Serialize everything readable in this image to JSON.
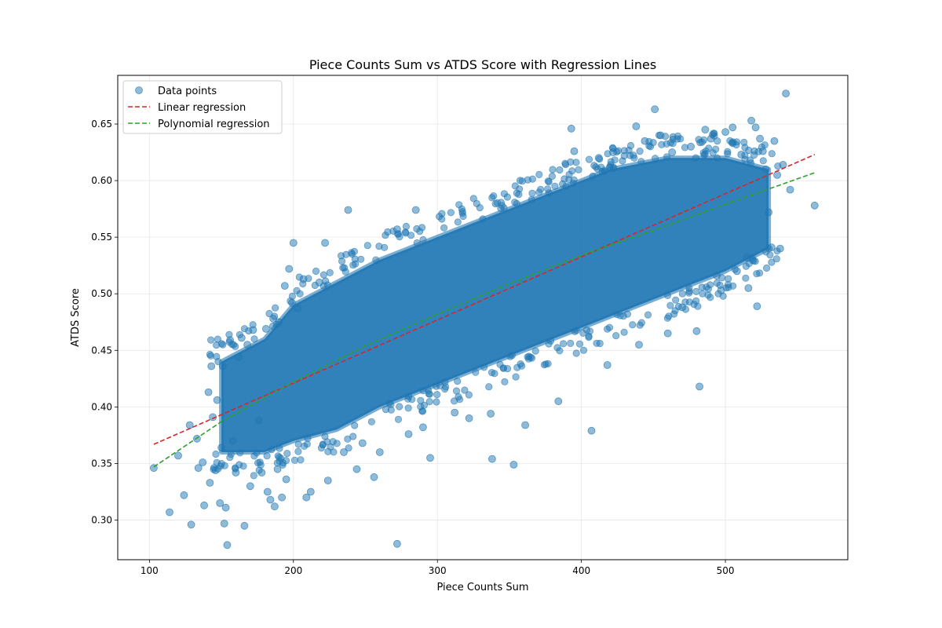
{
  "chart_data": {
    "type": "scatter",
    "title": "Piece Counts Sum vs ATDS Score with Regression Lines",
    "xlabel": "Piece Counts Sum",
    "ylabel": "ATDS Score",
    "xlim": [
      78,
      585
    ],
    "ylim": [
      0.265,
      0.693
    ],
    "xticks": [
      100,
      200,
      300,
      400,
      500
    ],
    "yticks": [
      0.3,
      0.35,
      0.4,
      0.45,
      0.5,
      0.55,
      0.6,
      0.65
    ],
    "grid": true,
    "legend_position": "top-left",
    "legend": [
      {
        "label": "Data points",
        "kind": "marker",
        "color": "#1f77b4"
      },
      {
        "label": "Linear regression",
        "kind": "dashed-line",
        "color": "#d62728"
      },
      {
        "label": "Polynomial regression",
        "kind": "dashed-line",
        "color": "#2ca02c"
      }
    ],
    "series": [
      {
        "name": "Data points",
        "kind": "scatter",
        "color": "#1f77b4",
        "dense_band": {
          "x": [
            150,
            180,
            200,
            230,
            260,
            300,
            340,
            380,
            420,
            460,
            500,
            530
          ],
          "y_low": [
            0.36,
            0.36,
            0.37,
            0.38,
            0.4,
            0.42,
            0.44,
            0.46,
            0.48,
            0.5,
            0.52,
            0.54
          ],
          "y_high": [
            0.44,
            0.46,
            0.49,
            0.51,
            0.53,
            0.55,
            0.57,
            0.59,
            0.61,
            0.62,
            0.62,
            0.61
          ]
        },
        "points": [
          [
            103,
            0.346
          ],
          [
            114,
            0.307
          ],
          [
            120,
            0.357
          ],
          [
            124,
            0.322
          ],
          [
            128,
            0.384
          ],
          [
            129,
            0.296
          ],
          [
            133,
            0.372
          ],
          [
            134,
            0.346
          ],
          [
            137,
            0.351
          ],
          [
            138,
            0.313
          ],
          [
            141,
            0.413
          ],
          [
            142,
            0.333
          ],
          [
            143,
            0.436
          ],
          [
            144,
            0.391
          ],
          [
            146,
            0.344
          ],
          [
            147,
            0.406
          ],
          [
            149,
            0.315
          ],
          [
            150,
            0.364
          ],
          [
            151,
            0.436
          ],
          [
            152,
            0.297
          ],
          [
            153,
            0.311
          ],
          [
            154,
            0.278
          ],
          [
            156,
            0.459
          ],
          [
            158,
            0.37
          ],
          [
            160,
            0.342
          ],
          [
            162,
            0.444
          ],
          [
            164,
            0.461
          ],
          [
            166,
            0.295
          ],
          [
            168,
            0.455
          ],
          [
            170,
            0.33
          ],
          [
            172,
            0.468
          ],
          [
            176,
            0.388
          ],
          [
            178,
            0.342
          ],
          [
            181,
            0.469
          ],
          [
            182,
            0.325
          ],
          [
            184,
            0.318
          ],
          [
            186,
            0.478
          ],
          [
            187,
            0.312
          ],
          [
            189,
            0.345
          ],
          [
            190,
            0.475
          ],
          [
            192,
            0.32
          ],
          [
            194,
            0.507
          ],
          [
            195,
            0.336
          ],
          [
            197,
            0.522
          ],
          [
            199,
            0.492
          ],
          [
            200,
            0.545
          ],
          [
            203,
            0.487
          ],
          [
            207,
            0.513
          ],
          [
            209,
            0.32
          ],
          [
            212,
            0.325
          ],
          [
            218,
            0.51
          ],
          [
            222,
            0.545
          ],
          [
            224,
            0.335
          ],
          [
            235,
            0.36
          ],
          [
            238,
            0.574
          ],
          [
            244,
            0.345
          ],
          [
            248,
            0.368
          ],
          [
            256,
            0.338
          ],
          [
            260,
            0.36
          ],
          [
            272,
            0.279
          ],
          [
            272,
            0.557
          ],
          [
            280,
            0.376
          ],
          [
            285,
            0.574
          ],
          [
            290,
            0.382
          ],
          [
            295,
            0.355
          ],
          [
            312,
            0.395
          ],
          [
            322,
            0.39
          ],
          [
            337,
            0.394
          ],
          [
            338,
            0.354
          ],
          [
            353,
            0.349
          ],
          [
            361,
            0.384
          ],
          [
            384,
            0.405
          ],
          [
            393,
            0.646
          ],
          [
            395,
            0.626
          ],
          [
            407,
            0.379
          ],
          [
            412,
            0.62
          ],
          [
            418,
            0.437
          ],
          [
            422,
            0.625
          ],
          [
            438,
            0.648
          ],
          [
            440,
            0.455
          ],
          [
            444,
            0.635
          ],
          [
            451,
            0.663
          ],
          [
            455,
            0.64
          ],
          [
            460,
            0.465
          ],
          [
            463,
            0.625
          ],
          [
            470,
            0.488
          ],
          [
            476,
            0.63
          ],
          [
            480,
            0.467
          ],
          [
            482,
            0.418
          ],
          [
            486,
            0.645
          ],
          [
            490,
            0.637
          ],
          [
            494,
            0.516
          ],
          [
            497,
            0.503
          ],
          [
            500,
            0.643
          ],
          [
            505,
            0.647
          ],
          [
            508,
            0.52
          ],
          [
            511,
            0.623
          ],
          [
            515,
            0.532
          ],
          [
            516,
            0.505
          ],
          [
            518,
            0.653
          ],
          [
            521,
            0.647
          ],
          [
            522,
            0.489
          ],
          [
            524,
            0.637
          ],
          [
            526,
            0.626
          ],
          [
            528,
            0.61
          ],
          [
            530,
            0.572
          ],
          [
            532,
            0.541
          ],
          [
            534,
            0.635
          ],
          [
            536,
            0.605
          ],
          [
            538,
            0.54
          ],
          [
            540,
            0.614
          ],
          [
            542,
            0.677
          ],
          [
            545,
            0.592
          ],
          [
            562,
            0.578
          ]
        ]
      },
      {
        "name": "Linear regression",
        "kind": "line",
        "color": "#d62728",
        "x": [
          103,
          562
        ],
        "y": [
          0.367,
          0.623
        ]
      },
      {
        "name": "Polynomial regression",
        "kind": "line",
        "color": "#2ca02c",
        "x": [
          103,
          150,
          200,
          250,
          300,
          350,
          400,
          450,
          500,
          562
        ],
        "y": [
          0.347,
          0.387,
          0.422,
          0.454,
          0.482,
          0.509,
          0.534,
          0.556,
          0.579,
          0.607
        ]
      }
    ]
  }
}
